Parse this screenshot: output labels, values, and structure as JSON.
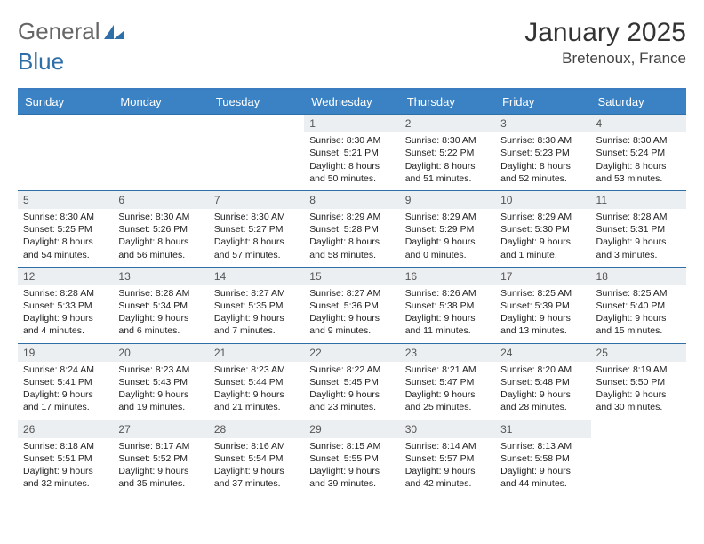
{
  "logo": {
    "part1": "General",
    "part2": "Blue"
  },
  "title": "January 2025",
  "location": "Bretenoux, France",
  "colors": {
    "header_bg": "#3b82c4",
    "header_text": "#ffffff",
    "daynum_bg": "#eceff1",
    "border": "#2f6fa8",
    "text": "#222222",
    "logo_blue": "#2f6fa8",
    "logo_gray": "#666666"
  },
  "font": {
    "title_size": 30,
    "location_size": 17,
    "header_size": 13,
    "cell_size": 10.5
  },
  "days_of_week": [
    "Sunday",
    "Monday",
    "Tuesday",
    "Wednesday",
    "Thursday",
    "Friday",
    "Saturday"
  ],
  "weeks": [
    [
      {
        "n": "",
        "sr": "",
        "ss": "",
        "dl": ""
      },
      {
        "n": "",
        "sr": "",
        "ss": "",
        "dl": ""
      },
      {
        "n": "",
        "sr": "",
        "ss": "",
        "dl": ""
      },
      {
        "n": "1",
        "sr": "Sunrise: 8:30 AM",
        "ss": "Sunset: 5:21 PM",
        "dl": "Daylight: 8 hours and 50 minutes."
      },
      {
        "n": "2",
        "sr": "Sunrise: 8:30 AM",
        "ss": "Sunset: 5:22 PM",
        "dl": "Daylight: 8 hours and 51 minutes."
      },
      {
        "n": "3",
        "sr": "Sunrise: 8:30 AM",
        "ss": "Sunset: 5:23 PM",
        "dl": "Daylight: 8 hours and 52 minutes."
      },
      {
        "n": "4",
        "sr": "Sunrise: 8:30 AM",
        "ss": "Sunset: 5:24 PM",
        "dl": "Daylight: 8 hours and 53 minutes."
      }
    ],
    [
      {
        "n": "5",
        "sr": "Sunrise: 8:30 AM",
        "ss": "Sunset: 5:25 PM",
        "dl": "Daylight: 8 hours and 54 minutes."
      },
      {
        "n": "6",
        "sr": "Sunrise: 8:30 AM",
        "ss": "Sunset: 5:26 PM",
        "dl": "Daylight: 8 hours and 56 minutes."
      },
      {
        "n": "7",
        "sr": "Sunrise: 8:30 AM",
        "ss": "Sunset: 5:27 PM",
        "dl": "Daylight: 8 hours and 57 minutes."
      },
      {
        "n": "8",
        "sr": "Sunrise: 8:29 AM",
        "ss": "Sunset: 5:28 PM",
        "dl": "Daylight: 8 hours and 58 minutes."
      },
      {
        "n": "9",
        "sr": "Sunrise: 8:29 AM",
        "ss": "Sunset: 5:29 PM",
        "dl": "Daylight: 9 hours and 0 minutes."
      },
      {
        "n": "10",
        "sr": "Sunrise: 8:29 AM",
        "ss": "Sunset: 5:30 PM",
        "dl": "Daylight: 9 hours and 1 minute."
      },
      {
        "n": "11",
        "sr": "Sunrise: 8:28 AM",
        "ss": "Sunset: 5:31 PM",
        "dl": "Daylight: 9 hours and 3 minutes."
      }
    ],
    [
      {
        "n": "12",
        "sr": "Sunrise: 8:28 AM",
        "ss": "Sunset: 5:33 PM",
        "dl": "Daylight: 9 hours and 4 minutes."
      },
      {
        "n": "13",
        "sr": "Sunrise: 8:28 AM",
        "ss": "Sunset: 5:34 PM",
        "dl": "Daylight: 9 hours and 6 minutes."
      },
      {
        "n": "14",
        "sr": "Sunrise: 8:27 AM",
        "ss": "Sunset: 5:35 PM",
        "dl": "Daylight: 9 hours and 7 minutes."
      },
      {
        "n": "15",
        "sr": "Sunrise: 8:27 AM",
        "ss": "Sunset: 5:36 PM",
        "dl": "Daylight: 9 hours and 9 minutes."
      },
      {
        "n": "16",
        "sr": "Sunrise: 8:26 AM",
        "ss": "Sunset: 5:38 PM",
        "dl": "Daylight: 9 hours and 11 minutes."
      },
      {
        "n": "17",
        "sr": "Sunrise: 8:25 AM",
        "ss": "Sunset: 5:39 PM",
        "dl": "Daylight: 9 hours and 13 minutes."
      },
      {
        "n": "18",
        "sr": "Sunrise: 8:25 AM",
        "ss": "Sunset: 5:40 PM",
        "dl": "Daylight: 9 hours and 15 minutes."
      }
    ],
    [
      {
        "n": "19",
        "sr": "Sunrise: 8:24 AM",
        "ss": "Sunset: 5:41 PM",
        "dl": "Daylight: 9 hours and 17 minutes."
      },
      {
        "n": "20",
        "sr": "Sunrise: 8:23 AM",
        "ss": "Sunset: 5:43 PM",
        "dl": "Daylight: 9 hours and 19 minutes."
      },
      {
        "n": "21",
        "sr": "Sunrise: 8:23 AM",
        "ss": "Sunset: 5:44 PM",
        "dl": "Daylight: 9 hours and 21 minutes."
      },
      {
        "n": "22",
        "sr": "Sunrise: 8:22 AM",
        "ss": "Sunset: 5:45 PM",
        "dl": "Daylight: 9 hours and 23 minutes."
      },
      {
        "n": "23",
        "sr": "Sunrise: 8:21 AM",
        "ss": "Sunset: 5:47 PM",
        "dl": "Daylight: 9 hours and 25 minutes."
      },
      {
        "n": "24",
        "sr": "Sunrise: 8:20 AM",
        "ss": "Sunset: 5:48 PM",
        "dl": "Daylight: 9 hours and 28 minutes."
      },
      {
        "n": "25",
        "sr": "Sunrise: 8:19 AM",
        "ss": "Sunset: 5:50 PM",
        "dl": "Daylight: 9 hours and 30 minutes."
      }
    ],
    [
      {
        "n": "26",
        "sr": "Sunrise: 8:18 AM",
        "ss": "Sunset: 5:51 PM",
        "dl": "Daylight: 9 hours and 32 minutes."
      },
      {
        "n": "27",
        "sr": "Sunrise: 8:17 AM",
        "ss": "Sunset: 5:52 PM",
        "dl": "Daylight: 9 hours and 35 minutes."
      },
      {
        "n": "28",
        "sr": "Sunrise: 8:16 AM",
        "ss": "Sunset: 5:54 PM",
        "dl": "Daylight: 9 hours and 37 minutes."
      },
      {
        "n": "29",
        "sr": "Sunrise: 8:15 AM",
        "ss": "Sunset: 5:55 PM",
        "dl": "Daylight: 9 hours and 39 minutes."
      },
      {
        "n": "30",
        "sr": "Sunrise: 8:14 AM",
        "ss": "Sunset: 5:57 PM",
        "dl": "Daylight: 9 hours and 42 minutes."
      },
      {
        "n": "31",
        "sr": "Sunrise: 8:13 AM",
        "ss": "Sunset: 5:58 PM",
        "dl": "Daylight: 9 hours and 44 minutes."
      },
      {
        "n": "",
        "sr": "",
        "ss": "",
        "dl": ""
      }
    ]
  ]
}
